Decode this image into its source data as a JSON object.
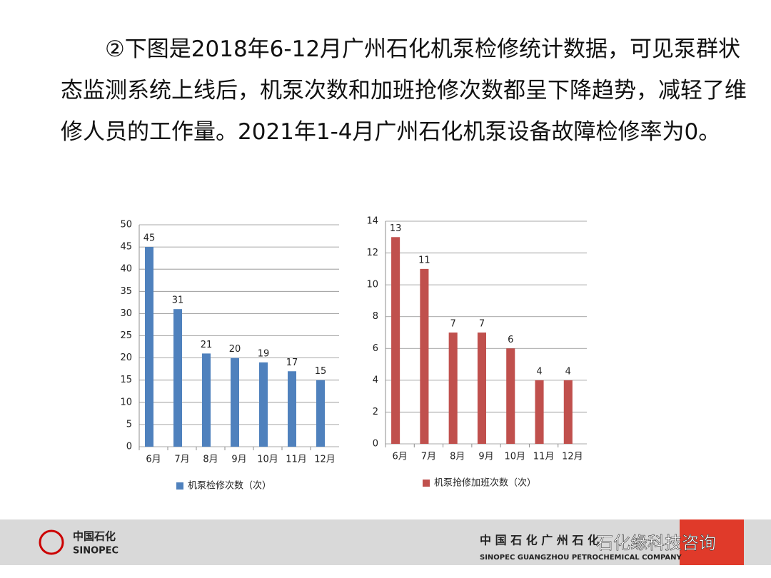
{
  "paragraph": "②下图是2018年6-12月广州石化机泵检修统计数据，可见泵群状态监测系统上线后，机泵次数和加班抢修次数都呈下降趋势，减轻了维修人员的工作量。2021年1-4月广州石化机泵设备故障检修率为0。",
  "chart_data": [
    {
      "type": "bar",
      "categories": [
        "6月",
        "7月",
        "8月",
        "9月",
        "10月",
        "11月",
        "12月"
      ],
      "series": [
        {
          "name": "机泵检修次数（次）",
          "color": "#4f81bd",
          "values": [
            45,
            31,
            21,
            20,
            19,
            17,
            15
          ]
        }
      ],
      "ylim": [
        0,
        50
      ],
      "yticks": [
        0,
        5,
        10,
        15,
        20,
        25,
        30,
        35,
        40,
        45,
        50
      ],
      "grid": true,
      "legend": "bottom"
    },
    {
      "type": "bar",
      "categories": [
        "6月",
        "7月",
        "8月",
        "9月",
        "10月",
        "11月",
        "12月"
      ],
      "series": [
        {
          "name": "机泵抢修加班次数（次）",
          "color": "#c0504d",
          "values": [
            13,
            11,
            7,
            7,
            6,
            4,
            4
          ]
        }
      ],
      "ylim": [
        0,
        14
      ],
      "yticks": [
        0,
        2,
        4,
        6,
        8,
        10,
        12,
        14
      ],
      "grid": true,
      "legend": "bottom"
    }
  ],
  "footer": {
    "logo_cn": "中国石化",
    "logo_en": "SINOPEC",
    "company_cn": "中 国 石 化 广 州 石 化",
    "company_en": "SINOPEC GUANGZHOU PETROCHEMICAL COMPANY",
    "watermark": "石化缘科技咨询"
  }
}
